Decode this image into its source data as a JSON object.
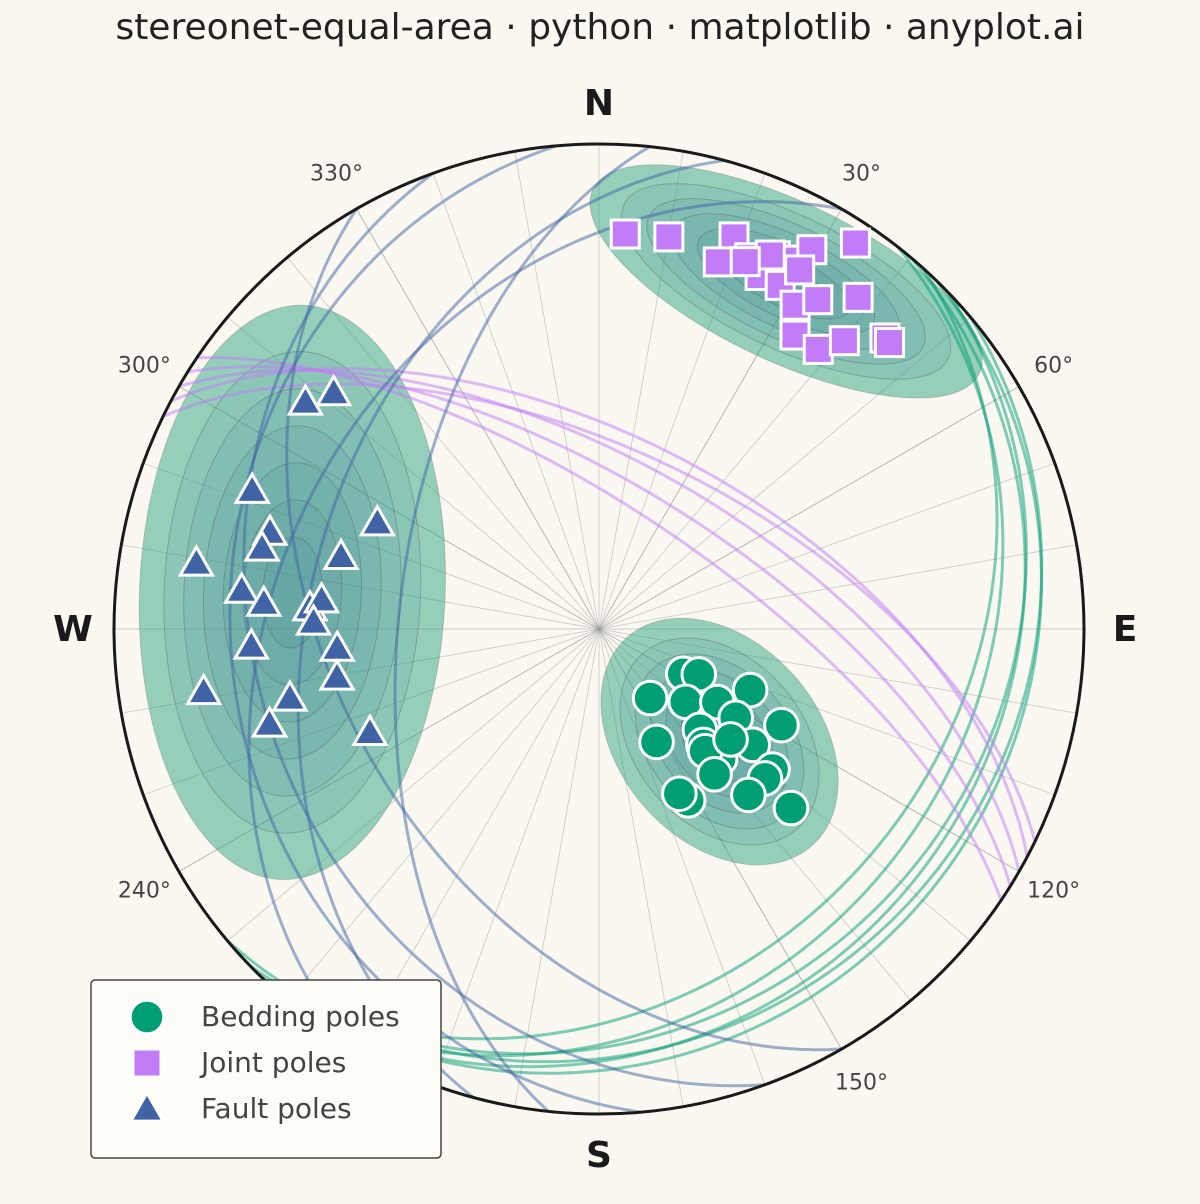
{
  "chart_data": {
    "type": "stereonet",
    "title": "stereonet-equal-area · python · matplotlib · anyplot.ai",
    "projection": "equal-area",
    "hemisphere": "lower",
    "cardinals": [
      {
        "value": 0,
        "label": "N"
      },
      {
        "value": 90,
        "label": "E"
      },
      {
        "value": 180,
        "label": "S"
      },
      {
        "value": 270,
        "label": "W"
      }
    ],
    "azimuth_ticks": [
      {
        "value": 30,
        "label": "30°"
      },
      {
        "value": 60,
        "label": "60°"
      },
      {
        "value": 120,
        "label": "120°"
      },
      {
        "value": 150,
        "label": "150°"
      },
      {
        "value": 240,
        "label": "240°"
      },
      {
        "value": 300,
        "label": "300°"
      },
      {
        "value": 330,
        "label": "330°"
      }
    ],
    "grid": true,
    "density_contours": true,
    "legend": "lower left",
    "series": [
      {
        "name": "Bedding poles",
        "color": "#009e73",
        "marker": "o",
        "trend": [
          118,
          114.5,
          143.5,
          130,
          121.7,
          112,
          123,
          135,
          117.8,
          153,
          138,
          127,
          137,
          139,
          129,
          132,
          138,
          152.5,
          133,
          154,
          141.5,
          130
        ],
        "plunge": [
          74,
          71.6,
          75.6,
          71,
          66.6,
          62.5,
          62.5,
          66,
          55,
          68.7,
          63.7,
          57.4,
          60,
          62.7,
          52,
          52,
          52,
          57.3,
          45,
          59,
          58.6,
          61
        ],
        "plane_dip_direction": [
          134,
          130,
          136,
          128,
          140,
          132
        ],
        "plane_dip": [
          14,
          18,
          20,
          24,
          16,
          28
        ]
      },
      {
        "name": "Joint poles",
        "color": "#c27cf8",
        "marker": "s",
        "trend": [
          3.8,
          10.1,
          19,
          18,
          22.1,
          25.3,
          28.3,
          29.3,
          33.6,
          24.5,
          27.8,
          29.2,
          31.2,
          33.6,
          38,
          33.7,
          38.1,
          40.4,
          44.5,
          45.4,
          24.6,
          21.7
        ],
        "plunge": [
          19.5,
          19,
          15.6,
          21.5,
          18.5,
          16,
          14.7,
          11.3,
          5,
          21,
          21,
          16.3,
          23,
          19.6,
          14.3,
          28,
          27.6,
          23,
          17,
          17,
          16.3,
          19.6
        ],
        "plane_dip_direction": [
          30,
          28,
          32,
          26,
          34
        ],
        "plane_dip": [
          62,
          58,
          66,
          60,
          70
        ]
      },
      {
        "name": "Fault poles",
        "color": "#3f63a5",
        "marker": "^",
        "trend": [
          307.7,
          311.7,
          291.8,
          286.4,
          295.6,
          283.5,
          279.3,
          285.7,
          276.2,
          274.4,
          274.2,
          276,
          271.4,
          265.8,
          267.2,
          259.6,
          261,
          257.4,
          253.9,
          245.7
        ],
        "plunge": [
          24.5,
          27.6,
          24,
          30,
          48,
          29.3,
          17,
          44,
          26.8,
          31.3,
          40,
          42,
          40.8,
          45,
          29,
          44.3,
          18.6,
          35,
          30,
          47
        ],
        "plane_dip_direction": [
          276,
          250,
          285,
          240,
          300,
          265
        ],
        "plane_dip": [
          56,
          30,
          40,
          45,
          35,
          25
        ]
      }
    ]
  }
}
